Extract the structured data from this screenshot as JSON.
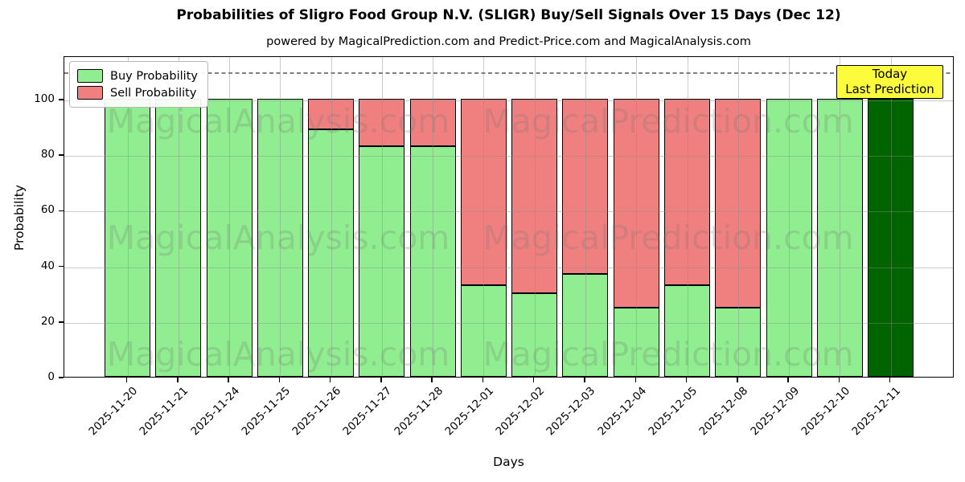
{
  "title": "Probabilities of Sligro Food Group N.V. (SLIGR) Buy/Sell Signals Over 15 Days (Dec 12)",
  "subtitle": "powered by MagicalPrediction.com and Predict-Price.com and MagicalAnalysis.com",
  "legend": {
    "buy_label": "Buy Probability",
    "sell_label": "Sell Probability"
  },
  "annotation": {
    "line1": "Today",
    "line2": "Last Prediction"
  },
  "watermarks": {
    "left": "MagicalAnalysis.com",
    "right": "MagicalPrediction.com"
  },
  "colors": {
    "buy": "#90EE90",
    "sell": "#F08080",
    "today_bar": "#006400",
    "annotation_bg": "#FCFC3C",
    "grid": "#8c8c8c",
    "dashed_line": "#7f7f7f",
    "bar_edge": "#000000"
  },
  "chart_data": {
    "type": "bar",
    "stacked": true,
    "title": "Probabilities of Sligro Food Group N.V. (SLIGR) Buy/Sell Signals Over 15 Days (Dec 12)",
    "xlabel": "Days",
    "ylabel": "Probability",
    "categories": [
      "2025-11-20",
      "2025-11-21",
      "2025-11-24",
      "2025-11-25",
      "2025-11-26",
      "2025-11-27",
      "2025-11-28",
      "2025-12-01",
      "2025-12-02",
      "2025-12-03",
      "2025-12-04",
      "2025-12-05",
      "2025-12-08",
      "2025-12-09",
      "2025-12-10",
      "2025-12-11"
    ],
    "series": [
      {
        "name": "Buy Probability",
        "color": "#90EE90",
        "values": [
          100,
          100,
          100,
          100,
          89,
          83,
          83,
          33,
          30,
          37,
          25,
          33,
          25,
          100,
          100,
          100
        ]
      },
      {
        "name": "Sell Probability",
        "color": "#F08080",
        "values": [
          0,
          0,
          0,
          0,
          11,
          17,
          17,
          67,
          70,
          63,
          75,
          67,
          75,
          0,
          0,
          0
        ]
      }
    ],
    "today_bar": {
      "category": "2025-12-11",
      "buy_value": 100,
      "color": "#006400"
    },
    "yticks": [
      0,
      20,
      40,
      60,
      80,
      100
    ],
    "ylim": [
      0,
      115.6
    ],
    "dashed_line_y": 110,
    "grid": true,
    "legend_position": "upper left"
  }
}
